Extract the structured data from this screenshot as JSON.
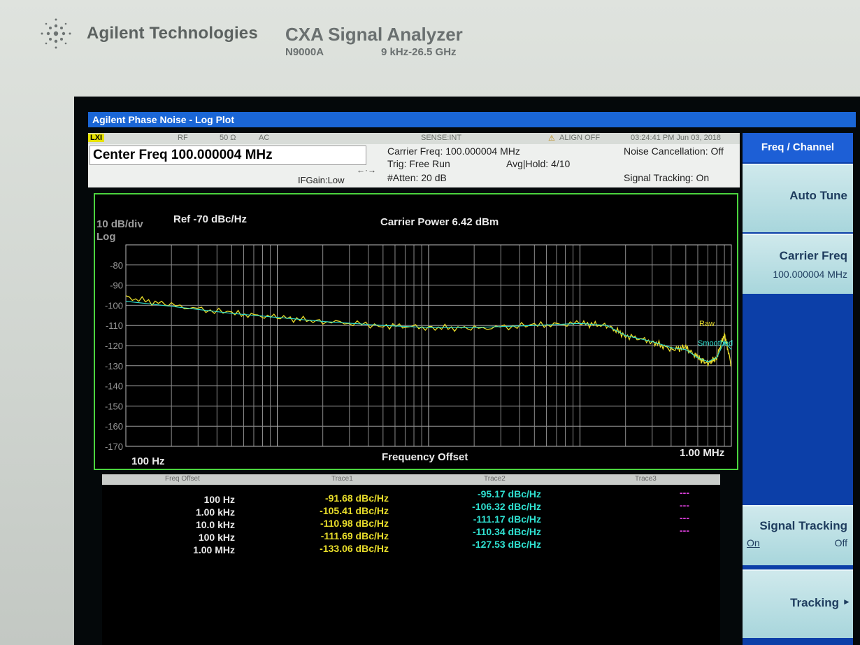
{
  "brand": {
    "name": "Agilent Technologies",
    "model_title": "CXA Signal Analyzer",
    "model_number": "N9000A",
    "range": "9 kHz-26.5 GHz"
  },
  "window": {
    "title": "Agilent Phase Noise - Log Plot"
  },
  "status": {
    "lxi": "LXI",
    "rf": "RF",
    "impedance": "50 Ω",
    "coupling": "AC",
    "sense": "SENSE:INT",
    "align": "ALIGN OFF",
    "datetime": "03:24:41 PM Jun 03, 2018"
  },
  "info": {
    "center_freq": "Center Freq 100.000004 MHz",
    "carrier_freq": "Carrier Freq: 100.000004 MHz",
    "trig": "Trig: Free Run",
    "avg_hold": "Avg|Hold: 4/10",
    "atten": "#Atten: 20 dB",
    "ifgain": "IFGain:Low",
    "noise_cancel": "Noise Cancellation: Off",
    "signal_tracking": "Signal Tracking: On"
  },
  "plot": {
    "scale": "10 dB/div",
    "log": "Log",
    "ref": "Ref  -70 dBc/Hz",
    "carrier_power": "Carrier Power 6.42 dBm",
    "x_start": "100 Hz",
    "x_stop": "1.00 MHz",
    "xlabel": "Frequency Offset",
    "raw_label": "Raw",
    "smoothed_label": "Smoothed",
    "y_ticks": [
      "-80",
      "-90",
      "-100",
      "-110",
      "-120",
      "-130",
      "-140",
      "-150",
      "-160",
      "-170"
    ]
  },
  "chart_data": {
    "type": "line",
    "xlabel": "Frequency Offset",
    "ylabel": "dBc/Hz",
    "x_scale": "log",
    "xlim": [
      100,
      1000000
    ],
    "ylim": [
      -170,
      -70
    ],
    "series": [
      {
        "name": "Raw",
        "color": "#e8dd2a",
        "x": [
          100,
          200,
          500,
          1000,
          2000,
          5000,
          10000,
          20000,
          50000,
          100000,
          150000,
          200000,
          300000,
          400000,
          500000,
          600000,
          700000,
          800000,
          900000,
          1000000
        ],
        "y": [
          -96,
          -100,
          -104,
          -106,
          -108,
          -110,
          -111,
          -111.5,
          -110,
          -109,
          -110,
          -115,
          -118,
          -122,
          -121,
          -126,
          -129,
          -126,
          -114,
          -130
        ]
      },
      {
        "name": "Smoothed",
        "color": "#2fe0d0",
        "x": [
          100,
          200,
          500,
          1000,
          2000,
          5000,
          10000,
          20000,
          50000,
          100000,
          150000,
          200000,
          300000,
          400000,
          500000,
          600000,
          700000,
          800000,
          900000,
          1000000
        ],
        "y": [
          -98,
          -100.5,
          -104,
          -106,
          -108,
          -110,
          -111,
          -111,
          -110,
          -109,
          -110,
          -115,
          -118,
          -121,
          -122,
          -126,
          -128,
          -126,
          -118,
          -122
        ]
      }
    ]
  },
  "table": {
    "headers": [
      "Freq Offset",
      "Trace1",
      "Trace2",
      "Trace3"
    ],
    "rows": [
      {
        "offset": "100 Hz",
        "t1": "-91.68 dBc/Hz",
        "t2": "-95.17 dBc/Hz",
        "t3": "---"
      },
      {
        "offset": "1.00 kHz",
        "t1": "-105.41 dBc/Hz",
        "t2": "-106.32 dBc/Hz",
        "t3": "---"
      },
      {
        "offset": "10.0 kHz",
        "t1": "-110.98 dBc/Hz",
        "t2": "-111.17 dBc/Hz",
        "t3": "---"
      },
      {
        "offset": "100 kHz",
        "t1": "-111.69 dBc/Hz",
        "t2": "-110.34 dBc/Hz",
        "t3": "---"
      },
      {
        "offset": "1.00 MHz",
        "t1": "-133.06 dBc/Hz",
        "t2": "-127.53 dBc/Hz",
        "t3": "---"
      }
    ]
  },
  "softkeys": {
    "title": "Freq / Channel",
    "auto_tune": "Auto Tune",
    "carrier_freq": "Carrier Freq",
    "carrier_freq_value": "100.000004 MHz",
    "signal_tracking": "Signal Tracking",
    "on": "On",
    "off": "Off",
    "tracking": "Tracking",
    "tracking_arrow": "▸"
  }
}
